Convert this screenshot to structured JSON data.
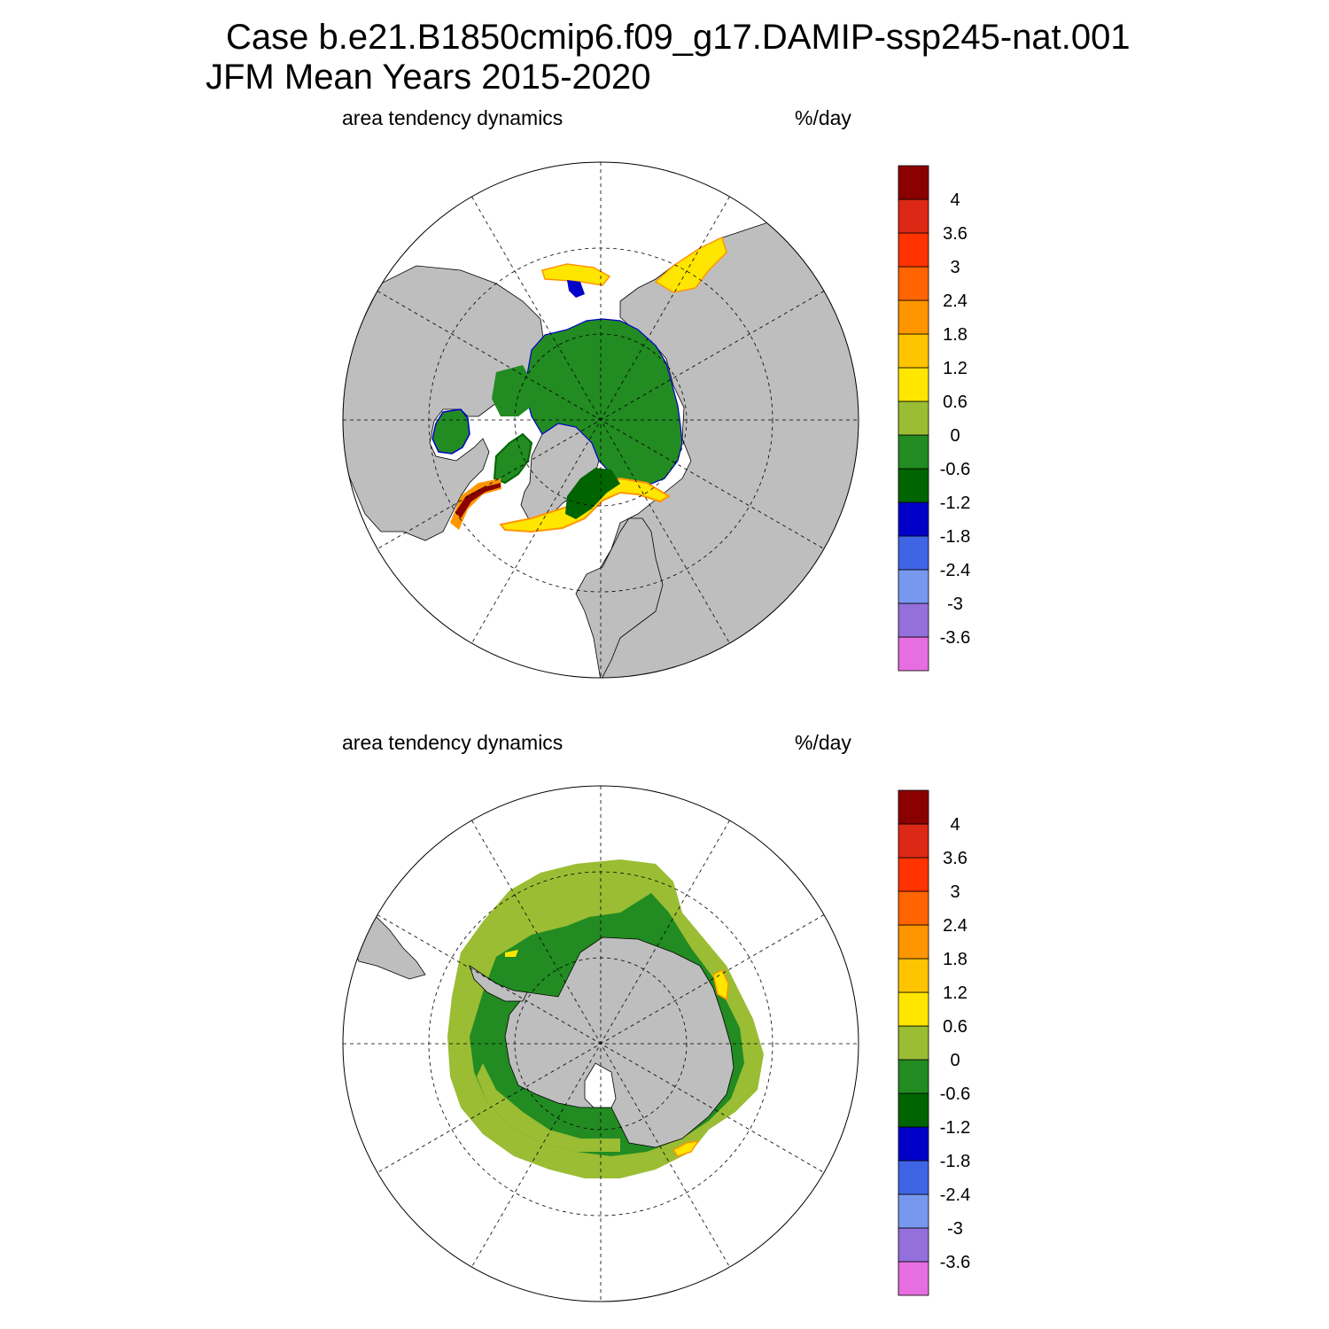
{
  "title": {
    "line1": "Case b.e21.B1850cmip6.f09_g17.DAMIP-ssp245-nat.001",
    "line2": "JFM Mean     Years 2015-2020"
  },
  "panels": [
    {
      "id": "north",
      "left_label": "area tendency dynamics",
      "right_label": "%/day"
    },
    {
      "id": "south",
      "left_label": "area tendency dynamics",
      "right_label": "%/day"
    }
  ],
  "colorbar": {
    "colors": [
      "#e66ee0",
      "#9470dc",
      "#7898f0",
      "#4064e6",
      "#0000c8",
      "#006400",
      "#228b22",
      "#9abd34",
      "#ffe600",
      "#ffc400",
      "#ff9600",
      "#ff6400",
      "#ff3200",
      "#dc2814",
      "#8b0000"
    ],
    "labels": [
      "-3.6",
      "-3",
      "-2.4",
      "-1.8",
      "-1.2",
      "-0.6",
      "0",
      "0.6",
      "1.2",
      "1.8",
      "2.4",
      "3",
      "3.6",
      "4"
    ]
  },
  "land_color": "#bebebe",
  "ocean_color": "#ffffff"
}
